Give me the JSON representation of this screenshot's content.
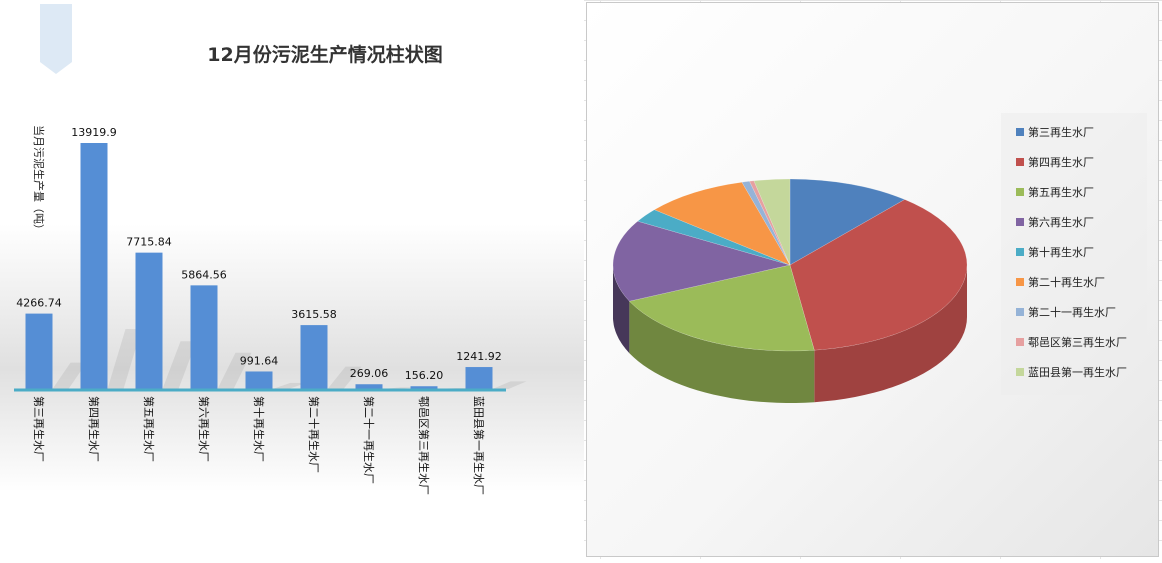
{
  "chart_data": [
    {
      "type": "bar",
      "title": "12月份污泥生产情况柱状图",
      "ylabel": "当月污泥生产量（吨）",
      "xlabel": "",
      "categories": [
        "第三再生水厂",
        "第四再生水厂",
        "第五再生水厂",
        "第六再生水厂",
        "第十再生水厂",
        "第二十再生水厂",
        "第二十一再生水厂",
        "鄠邑区第三再生水厂",
        "蓝田县第一再生水厂"
      ],
      "values": [
        4266.74,
        13919.9,
        7715.84,
        5864.56,
        991.64,
        3615.58,
        269.06,
        156.2,
        1241.92
      ],
      "data_labels": [
        "4266.74",
        "13919.9",
        "7715.84",
        "5864.56",
        "991.64",
        "3615.58",
        "269.06",
        "156.20",
        "1241.92"
      ],
      "ylim": [
        0,
        14000
      ],
      "grid": false,
      "bar_color": "#558ed5"
    },
    {
      "type": "pie",
      "style": "3d",
      "categories": [
        "第三再生水厂",
        "第四再生水厂",
        "第五再生水厂",
        "第六再生水厂",
        "第十再生水厂",
        "第二十再生水厂",
        "第二十一再生水厂",
        "鄠邑区第三再生水厂",
        "蓝田县第一再生水厂"
      ],
      "values": [
        4266.74,
        13919.9,
        7715.84,
        5864.56,
        991.64,
        3615.58,
        269.06,
        156.2,
        1241.92
      ],
      "colors": [
        "#4f81bd",
        "#c0504d",
        "#9bbb59",
        "#8064a2",
        "#4bacc6",
        "#f79646",
        "#95b3d7",
        "#e6a0a0",
        "#c4d79b"
      ],
      "legend_position": "right"
    }
  ]
}
